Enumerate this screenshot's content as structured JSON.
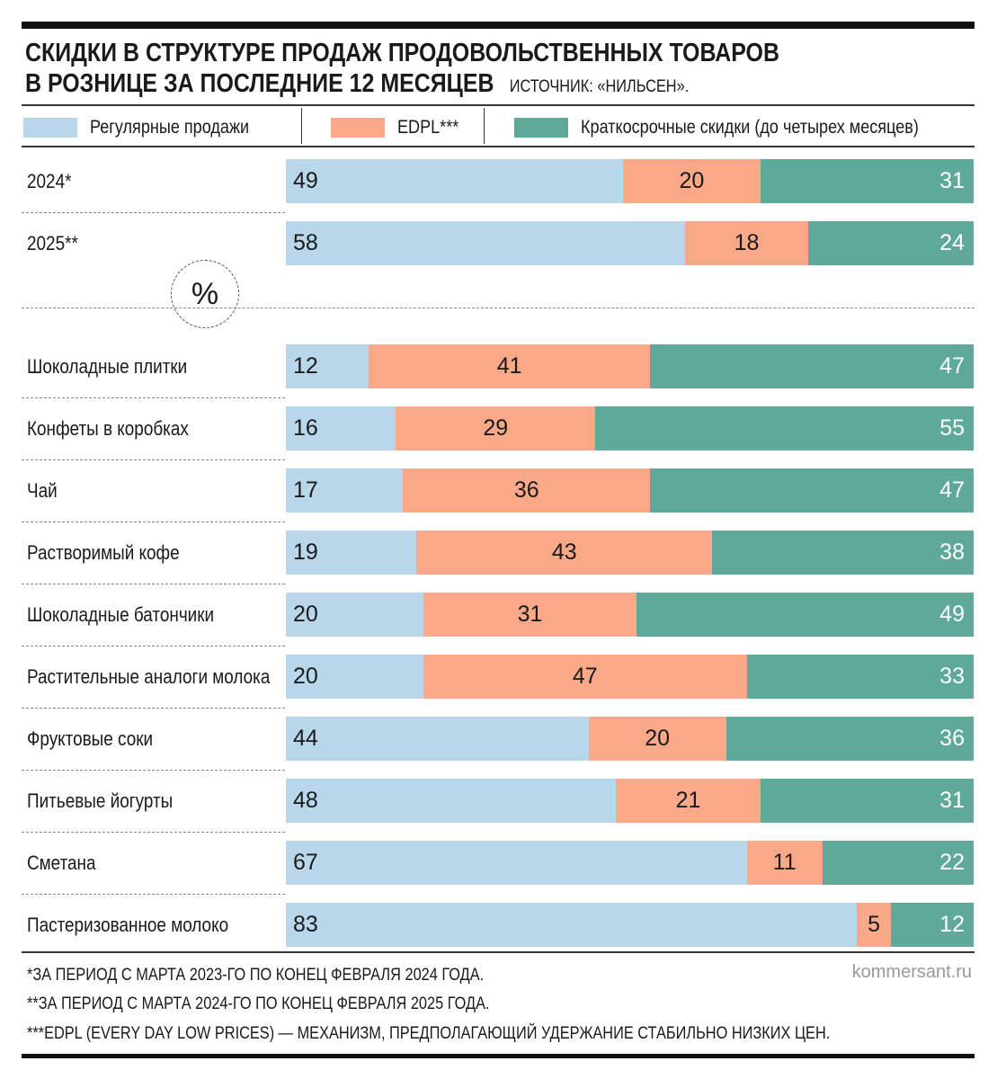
{
  "title_line1": "СКИДКИ В СТРУКТУРЕ ПРОДАЖ ПРОДОВОЛЬСТВЕННЫХ ТОВАРОВ",
  "title_line2": "В РОЗНИЦЕ ЗА ПОСЛЕДНИЕ 12 МЕСЯЦЕВ",
  "source": "ИСТОЧНИК: «НИЛЬСЕН».",
  "unit": "%",
  "colors": {
    "regular": "#b9d7ea",
    "edpl": "#f9a987",
    "short": "#5fa99a"
  },
  "chart_data": {
    "type": "bar",
    "stacked": true,
    "orientation": "horizontal",
    "xlim": [
      0,
      100
    ],
    "legend_position": "top",
    "series_names": [
      "Регулярные продажи",
      "EDPL***",
      "Краткосрочные скидки (до четырех месяцев)"
    ],
    "groups": [
      {
        "categories": [
          "2024*",
          "2025**"
        ],
        "series": [
          {
            "name": "Регулярные продажи",
            "values": [
              49,
              58
            ]
          },
          {
            "name": "EDPL***",
            "values": [
              20,
              18
            ]
          },
          {
            "name": "Краткосрочные скидки (до четырех месяцев)",
            "values": [
              31,
              24
            ]
          }
        ]
      },
      {
        "categories": [
          "Шоколадные плитки",
          "Конфеты в коробках",
          "Чай",
          "Растворимый кофе",
          "Шоколадные батончики",
          "Растительные аналоги молока",
          "Фруктовые соки",
          "Питьевые йогурты",
          "Сметана",
          "Пастеризованное молоко"
        ],
        "series": [
          {
            "name": "Регулярные продажи",
            "values": [
              12,
              16,
              17,
              19,
              20,
              20,
              44,
              48,
              67,
              83
            ]
          },
          {
            "name": "EDPL***",
            "values": [
              41,
              29,
              36,
              43,
              31,
              47,
              20,
              21,
              11,
              5
            ]
          },
          {
            "name": "Краткосрочные скидки (до четырех месяцев)",
            "values": [
              47,
              55,
              47,
              38,
              49,
              33,
              36,
              31,
              22,
              12
            ]
          }
        ]
      }
    ]
  },
  "footnotes": [
    "*ЗА ПЕРИОД С МАРТА 2023-ГО ПО КОНЕЦ ФЕВРАЛЯ 2024 ГОДА.",
    "**ЗА ПЕРИОД С МАРТА 2024-ГО ПО КОНЕЦ ФЕВРАЛЯ 2025 ГОДА.",
    "***EDPL (EVERY DAY LOW PRICES) — МЕХАНИЗМ, ПРЕДПОЛАГАЮЩИЙ УДЕРЖАНИЕ СТАБИЛЬНО НИЗКИХ ЦЕН."
  ],
  "brand": "kommersant.ru"
}
